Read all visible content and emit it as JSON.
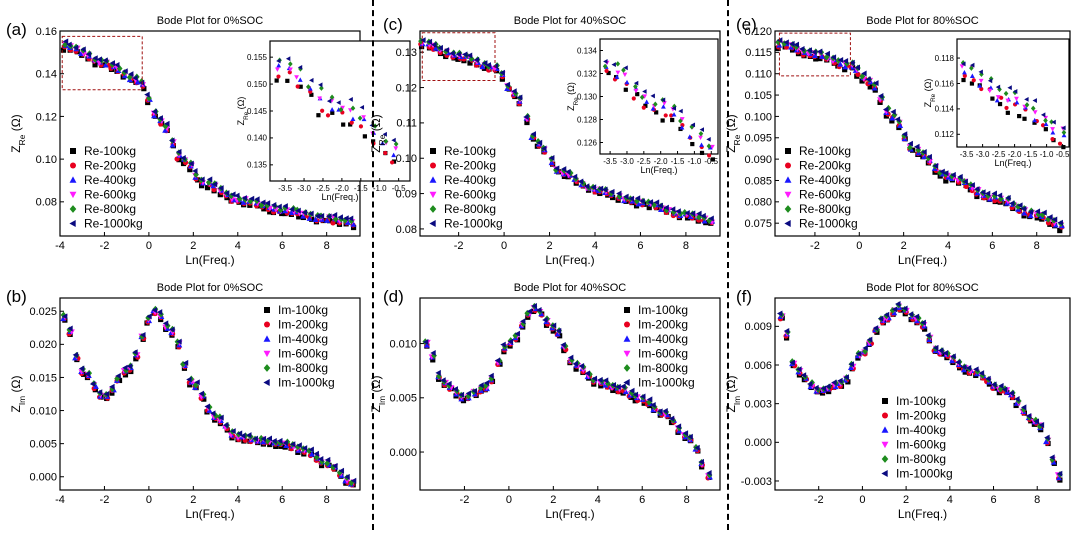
{
  "chart_data": [
    {
      "panel_label": "(a)",
      "type": "scatter",
      "title": "Bode Plot for 0%SOC",
      "xlabel": "Ln(Freq.)",
      "ylabel_main": "Z",
      "ylabel_sub": "Re",
      "ylabel_unit": " (Ω)",
      "xlim": [
        -4,
        9.5
      ],
      "ylim": [
        0.064,
        0.16
      ],
      "xticks": [
        -4,
        -2,
        0,
        2,
        4,
        6,
        8
      ],
      "xtick_labels": [
        "-4",
        "-2",
        "0",
        "2",
        "4",
        "6",
        "8"
      ],
      "yticks": [
        0.08,
        0.1,
        0.12,
        0.14,
        0.16
      ],
      "ytick_labels": [
        "0.08",
        "0.10",
        "0.12",
        "0.14",
        "0.16"
      ],
      "legend": [
        "Re-100kg",
        "Re-200kg",
        "Re-400kg",
        "Re-600kg",
        "Re-800kg",
        "Re-1000kg"
      ],
      "legend_position": "lower-left",
      "curve_points": [
        [
          -3.8,
          0.153
        ],
        [
          -2,
          0.145
        ],
        [
          -0.5,
          0.137
        ],
        [
          0.5,
          0.118
        ],
        [
          1.5,
          0.1
        ],
        [
          2.5,
          0.089
        ],
        [
          4,
          0.081
        ],
        [
          6,
          0.076
        ],
        [
          8,
          0.072
        ],
        [
          9.3,
          0.07
        ]
      ],
      "series_spread": 0.003,
      "zoom_box": {
        "x": [
          -3.9,
          -0.3
        ],
        "y": [
          0.1325,
          0.1575
        ]
      },
      "inset": {
        "xlabel": "Ln(Freq.)",
        "ylabel_main": "Z",
        "ylabel_sub": "Re",
        "ylabel_unit": " (Ω)",
        "xlim": [
          -3.9,
          -0.2
        ],
        "ylim": [
          0.132,
          0.158
        ],
        "xticks": [
          -3.5,
          -3,
          -2.5,
          -2,
          -1.5,
          -1,
          -0.5
        ],
        "xtick_labels": [
          "-3.5",
          "-3.0",
          "-2.5",
          "-2.0",
          "-1.5",
          "-1.0",
          "-0.5"
        ],
        "yticks": [
          0.135,
          0.14,
          0.145,
          0.15,
          0.155
        ],
        "ytick_labels": [
          "0.135",
          "0.140",
          "0.145",
          "0.150",
          "0.155"
        ],
        "curve_points": [
          [
            -3.7,
            0.153
          ],
          [
            -2,
            0.145
          ],
          [
            -0.4,
            0.137
          ]
        ],
        "series_spread": 0.004
      }
    },
    {
      "panel_label": "(c)",
      "type": "scatter",
      "title": "Bode Plot for 40%SOC",
      "xlabel": "Ln(Freq.)",
      "ylabel_main": "Z",
      "ylabel_sub": "Re",
      "ylabel_unit": " (Ω)",
      "xlim": [
        -3.7,
        9.5
      ],
      "ylim": [
        0.078,
        0.136
      ],
      "xticks": [
        -2,
        0,
        2,
        4,
        6,
        8
      ],
      "xtick_labels": [
        "-2",
        "0",
        "2",
        "4",
        "6",
        "8"
      ],
      "yticks": [
        0.08,
        0.09,
        0.1,
        0.11,
        0.12,
        0.13
      ],
      "ytick_labels": [
        "0.08",
        "0.09",
        "0.10",
        "0.11",
        "0.12",
        "0.13"
      ],
      "legend": [
        "Re-100kg",
        "Re-200kg",
        "Re-400kg",
        "Re-600kg",
        "Re-800kg",
        "Re-1000kg"
      ],
      "legend_position": "lower-left",
      "curve_points": [
        [
          -3.6,
          0.1325
        ],
        [
          -2,
          0.129
        ],
        [
          -0.4,
          0.1255
        ],
        [
          0.5,
          0.118
        ],
        [
          1.5,
          0.104
        ],
        [
          2.5,
          0.096
        ],
        [
          4,
          0.091
        ],
        [
          6,
          0.0875
        ],
        [
          8,
          0.084
        ],
        [
          9.3,
          0.082
        ]
      ],
      "series_spread": 0.0015,
      "zoom_box": {
        "x": [
          -3.6,
          -0.4
        ],
        "y": [
          0.122,
          0.1355
        ]
      },
      "inset": {
        "xlabel": "Ln(Freq.)",
        "ylabel_main": "Z",
        "ylabel_sub": "Re",
        "ylabel_unit": " (Ω)",
        "xlim": [
          -3.8,
          -0.3
        ],
        "ylim": [
          0.125,
          0.135
        ],
        "xticks": [
          -3.5,
          -3,
          -2.5,
          -2,
          -1.5,
          -1,
          -0.5
        ],
        "xtick_labels": [
          "-3.5",
          "-3.0",
          "-2.5",
          "-2.0",
          "-1.5",
          "-1.0",
          "-0.5"
        ],
        "yticks": [
          0.126,
          0.128,
          0.13,
          0.132,
          0.134
        ],
        "ytick_labels": [
          "0.126",
          "0.128",
          "0.130",
          "0.132",
          "0.134"
        ],
        "curve_points": [
          [
            -3.6,
            0.1325
          ],
          [
            -2,
            0.129
          ],
          [
            -0.4,
            0.1255
          ]
        ],
        "series_spread": 0.0015
      }
    },
    {
      "panel_label": "(e)",
      "type": "scatter",
      "title": "Bode Plot for 80%SOC",
      "xlabel": "Ln(Freq.)",
      "ylabel_main": "Z",
      "ylabel_sub": "Re",
      "ylabel_unit": " (Ω)",
      "xlim": [
        -3.8,
        9.5
      ],
      "ylim": [
        0.072,
        0.12
      ],
      "xticks": [
        -2,
        0,
        2,
        4,
        6,
        8
      ],
      "xtick_labels": [
        "-2",
        "0",
        "2",
        "4",
        "6",
        "8"
      ],
      "yticks": [
        0.075,
        0.08,
        0.085,
        0.09,
        0.095,
        0.1,
        0.105,
        0.11,
        0.115,
        0.12
      ],
      "ytick_labels": [
        "0.075",
        "0.080",
        "0.085",
        "0.090",
        "0.095",
        "0.100",
        "0.105",
        "0.110",
        "0.115",
        "0.120"
      ],
      "legend": [
        "Re-100kg",
        "Re-200kg",
        "Re-400kg",
        "Re-600kg",
        "Re-800kg",
        "Re-1000kg"
      ],
      "legend_position": "lower-left",
      "curve_points": [
        [
          -3.6,
          0.117
        ],
        [
          -2,
          0.1145
        ],
        [
          -0.5,
          0.112
        ],
        [
          0.5,
          0.108
        ],
        [
          1.5,
          0.1
        ],
        [
          2.5,
          0.092
        ],
        [
          4,
          0.086
        ],
        [
          6,
          0.081
        ],
        [
          8,
          0.077
        ],
        [
          9.3,
          0.074
        ]
      ],
      "series_spread": 0.0015,
      "zoom_box": {
        "x": [
          -3.6,
          -0.4
        ],
        "y": [
          0.1095,
          0.1195
        ]
      },
      "inset": {
        "xlabel": "Ln(Freq.)",
        "ylabel_main": "Z",
        "ylabel_sub": "Re",
        "ylabel_unit": " (Ω)",
        "xlim": [
          -3.8,
          -0.3
        ],
        "ylim": [
          0.111,
          0.1195
        ],
        "xticks": [
          -3.5,
          -3,
          -2.5,
          -2,
          -1.5,
          -1,
          -0.5
        ],
        "xtick_labels": [
          "-3.5",
          "-3.0",
          "-2.5",
          "-2.0",
          "-1.5",
          "-1.0",
          "-0.5"
        ],
        "yticks": [
          0.112,
          0.114,
          0.116,
          0.118
        ],
        "ytick_labels": [
          "0.112",
          "0.114",
          "0.116",
          "0.118"
        ],
        "curve_points": [
          [
            -3.6,
            0.117
          ],
          [
            -2,
            0.1145
          ],
          [
            -0.4,
            0.112
          ]
        ],
        "series_spread": 0.0015
      }
    },
    {
      "panel_label": "(b)",
      "type": "scatter",
      "title": "Bode Plot for 0%SOC",
      "xlabel": "Ln(Freq.)",
      "ylabel_main": "Z",
      "ylabel_sub": "Im",
      "ylabel_unit": " (Ω)",
      "xlim": [
        -4,
        9.5
      ],
      "ylim": [
        -0.002,
        0.027
      ],
      "xticks": [
        -4,
        -2,
        0,
        2,
        4,
        6,
        8
      ],
      "xtick_labels": [
        "-4",
        "-2",
        "0",
        "2",
        "4",
        "6",
        "8"
      ],
      "yticks": [
        0,
        0.005,
        0.01,
        0.015,
        0.02,
        0.025
      ],
      "ytick_labels": [
        "0.000",
        "0.005",
        "0.010",
        "0.015",
        "0.020",
        "0.025"
      ],
      "legend": [
        "Im-100kg",
        "Im-200kg",
        "Im-400kg",
        "Im-600kg",
        "Im-800kg",
        "Im-1000kg"
      ],
      "legend_position": "top-right",
      "curve_points": [
        [
          -3.8,
          0.024
        ],
        [
          -3,
          0.016
        ],
        [
          -2,
          0.012
        ],
        [
          -1,
          0.016
        ],
        [
          0.3,
          0.025
        ],
        [
          1,
          0.022
        ],
        [
          2,
          0.014
        ],
        [
          3,
          0.009
        ],
        [
          4,
          0.006
        ],
        [
          5,
          0.0055
        ],
        [
          6,
          0.005
        ],
        [
          7,
          0.004
        ],
        [
          8,
          0.002
        ],
        [
          9.2,
          -0.001
        ]
      ],
      "series_spread": 0.0008
    },
    {
      "panel_label": "(d)",
      "type": "scatter",
      "title": "Bode Plot for 40%SOC",
      "xlabel": "Ln(Freq.)",
      "ylabel_main": "Z",
      "ylabel_sub": "Im",
      "ylabel_unit": " (Ω)",
      "xlim": [
        -4,
        9.5
      ],
      "ylim": [
        -0.0035,
        0.0142
      ],
      "xticks": [
        -2,
        0,
        2,
        4,
        6,
        8
      ],
      "xtick_labels": [
        "-2",
        "0",
        "2",
        "4",
        "6",
        "8"
      ],
      "yticks": [
        0,
        0.005,
        0.01
      ],
      "ytick_labels": [
        "0.000",
        "0.005",
        "0.010"
      ],
      "legend": [
        "Im-100kg",
        "Im-200kg",
        "Im-400kg",
        "Im-600kg",
        "Im-800kg",
        "Im-1000kg"
      ],
      "legend_position": "top-right",
      "curve_points": [
        [
          -3.7,
          0.01
        ],
        [
          -3,
          0.0065
        ],
        [
          -2,
          0.005
        ],
        [
          -1,
          0.006
        ],
        [
          0,
          0.01
        ],
        [
          1.2,
          0.0132
        ],
        [
          2,
          0.0115
        ],
        [
          3,
          0.008
        ],
        [
          4,
          0.0065
        ],
        [
          5,
          0.0058
        ],
        [
          6,
          0.0048
        ],
        [
          7,
          0.0035
        ],
        [
          8,
          0.0015
        ],
        [
          9.2,
          -0.0025
        ]
      ],
      "series_spread": 0.0005
    },
    {
      "panel_label": "(f)",
      "type": "scatter",
      "title": "Bode Plot for 80%SOC",
      "xlabel": "Ln(Freq.)",
      "ylabel_main": "Z",
      "ylabel_sub": "Im",
      "ylabel_unit": " (Ω)",
      "xlim": [
        -4,
        9.5
      ],
      "ylim": [
        -0.0037,
        0.0112
      ],
      "xticks": [
        -2,
        0,
        2,
        4,
        6,
        8
      ],
      "xtick_labels": [
        "-2",
        "0",
        "2",
        "4",
        "6",
        "8"
      ],
      "yticks": [
        -0.003,
        0,
        0.003,
        0.006,
        0.009
      ],
      "ytick_labels": [
        "-0.003",
        "0.000",
        "0.003",
        "0.006",
        "0.009"
      ],
      "legend": [
        "Im-100kg",
        "Im-200kg",
        "Im-400kg",
        "Im-600kg",
        "Im-800kg",
        "Im-1000kg"
      ],
      "legend_position": "bottom-left",
      "curve_points": [
        [
          -3.7,
          0.0098
        ],
        [
          -3,
          0.0055
        ],
        [
          -2,
          0.004
        ],
        [
          -1,
          0.0045
        ],
        [
          0,
          0.007
        ],
        [
          1,
          0.0095
        ],
        [
          1.7,
          0.0105
        ],
        [
          2.5,
          0.0095
        ],
        [
          3.5,
          0.007
        ],
        [
          5,
          0.0055
        ],
        [
          6.5,
          0.004
        ],
        [
          8,
          0.0015
        ],
        [
          9.2,
          -0.003
        ]
      ],
      "series_spread": 0.0004
    }
  ],
  "series_style": {
    "colors": [
      "#000000",
      "#e8001f",
      "#1a17ff",
      "#ff1aff",
      "#1e8c1e",
      "#0a0a80"
    ],
    "markers": [
      "square",
      "circle",
      "triangle-up",
      "triangle-down",
      "diamond",
      "triangle-left"
    ]
  },
  "separator_style": "dashed"
}
